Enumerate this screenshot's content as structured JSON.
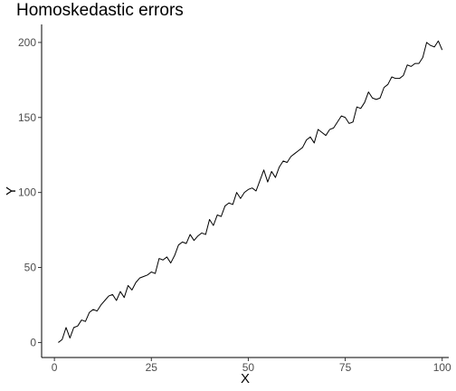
{
  "chart_data": {
    "type": "line",
    "title": "Homoskedastic errors",
    "xlabel": "X",
    "ylabel": "Y",
    "xlim": [
      -3.3,
      101.7
    ],
    "ylim": [
      -10,
      212
    ],
    "x_ticks": [
      0,
      25,
      50,
      75,
      100
    ],
    "y_ticks": [
      0,
      50,
      100,
      150,
      200
    ],
    "grid": false,
    "line_color": "#000000",
    "series": [
      {
        "x": [
          1,
          2,
          3,
          4,
          5,
          6,
          7,
          8,
          9,
          10,
          11,
          12,
          13,
          14,
          15,
          16,
          17,
          18,
          19,
          20,
          21,
          22,
          23,
          24,
          25,
          26,
          27,
          28,
          29,
          30,
          31,
          32,
          33,
          34,
          35,
          36,
          37,
          38,
          39,
          40,
          41,
          42,
          43,
          44,
          45,
          46,
          47,
          48,
          49,
          50,
          51,
          52,
          53,
          54,
          55,
          56,
          57,
          58,
          59,
          60,
          61,
          62,
          63,
          64,
          65,
          66,
          67,
          68,
          69,
          70,
          71,
          72,
          73,
          74,
          75,
          76,
          77,
          78,
          79,
          80,
          81,
          82,
          83,
          84,
          85,
          86,
          87,
          88,
          89,
          90,
          91,
          92,
          93,
          94,
          95,
          96,
          97,
          98,
          99,
          100
        ],
        "y": [
          0,
          2,
          10,
          3,
          10,
          11,
          15,
          14,
          20,
          22,
          21,
          25,
          28,
          31,
          32,
          28,
          34,
          30,
          38,
          35,
          40,
          43,
          44,
          45,
          47,
          46,
          56,
          55,
          57,
          53,
          58,
          65,
          67,
          66,
          72,
          68,
          71,
          73,
          72,
          82,
          78,
          85,
          84,
          91,
          93,
          92,
          100,
          96,
          100,
          102,
          103,
          101,
          108,
          115,
          107,
          114,
          110,
          117,
          121,
          120,
          124,
          126,
          128,
          130,
          135,
          137,
          133,
          142,
          140,
          138,
          142,
          143,
          147,
          151,
          150,
          146,
          147,
          157,
          156,
          160,
          167,
          163,
          162,
          163,
          170,
          172,
          177,
          176,
          176,
          178,
          185,
          184,
          186,
          186,
          190,
          200,
          198,
          197,
          201,
          195
        ]
      }
    ]
  }
}
